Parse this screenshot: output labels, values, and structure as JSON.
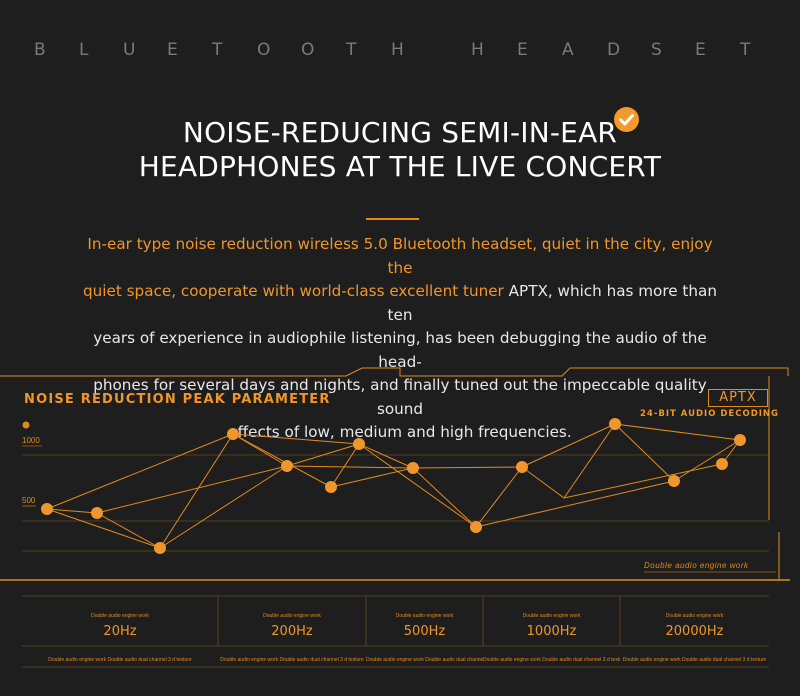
{
  "header": {
    "letters": [
      "B",
      "L",
      "U",
      "E",
      "T",
      "O",
      "O",
      "T",
      "H",
      "H",
      "E",
      "A",
      "D",
      "S",
      "E",
      "T"
    ]
  },
  "headline": {
    "line1": "NOISE-REDUCING SEMI-IN-EAR",
    "line2": "HEADPHONES AT THE LIVE CONCERT"
  },
  "description": {
    "highlight_line1": "In-ear type noise reduction wireless 5.0 Bluetooth headset, quiet in the city, enjoy the",
    "highlight_line2": "quiet space, cooperate with world-class excellent tuner",
    "rest_line2": " APTX, which has more than ten",
    "line3": "years of experience in audiophile listening, has been debugging the audio of the head-",
    "line4": "phones for several days and nights, and finally tuned out the impeccable quality sound",
    "line5": "effects of low, medium and high frequencies."
  },
  "panel": {
    "title": "NOISE REDUCTION PEAK PARAMETER",
    "badge": "APTX",
    "badge_sub": "24-BIT AUDIO DECODING",
    "y_tick_high": "1000",
    "y_tick_low": "500",
    "note": "Double audio engine work",
    "accent_color": "#e38a1e"
  },
  "frequencies": [
    {
      "small": "Double audio engine work",
      "value": "20Hz",
      "foot": "Double audio engine work Double audio dual channel 3 d texture"
    },
    {
      "small": "Double audio engine work",
      "value": "200Hz",
      "foot": "Double audio engine work Double audio dual channel 3 d texture"
    },
    {
      "small": "Double audio engine work",
      "value": "500Hz",
      "foot": "Double audio engine work Double audio dual channel 3 d texture"
    },
    {
      "small": "Double audio engine work",
      "value": "1000Hz",
      "foot": "Double audio engine work Double audio dual channel 3 d texture"
    },
    {
      "small": "Double audio engine work",
      "value": "20000Hz",
      "foot": "Double audio engine work Double audio dual channel 3 d texture"
    }
  ]
}
